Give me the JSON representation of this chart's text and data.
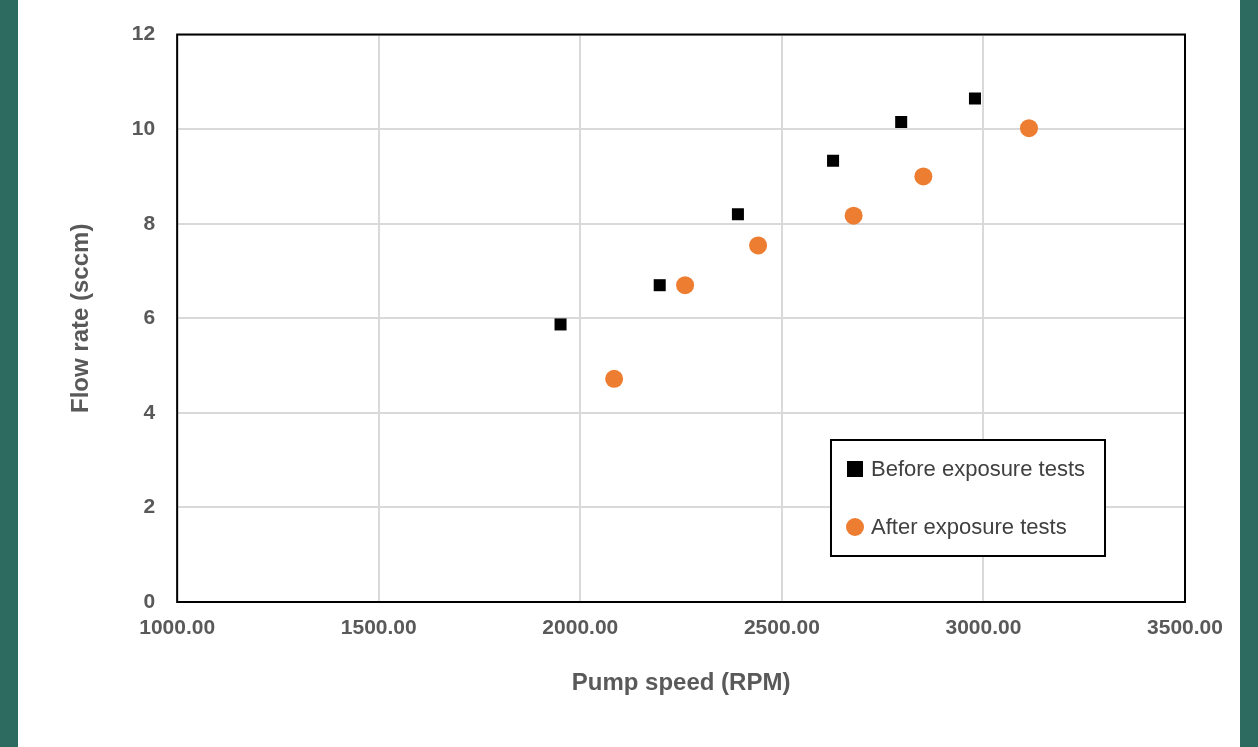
{
  "chart_data": {
    "type": "scatter",
    "xlabel": "Pump speed (RPM)",
    "ylabel": "Flow rate (sccm)",
    "xlim": [
      1000,
      3500
    ],
    "xticks": [
      {
        "value": 1000,
        "label": "1000.00"
      },
      {
        "value": 1500,
        "label": "1500.00"
      },
      {
        "value": 2000,
        "label": "2000.00"
      },
      {
        "value": 2500,
        "label": "2500.00"
      },
      {
        "value": 3000,
        "label": "3000.00"
      },
      {
        "value": 3500,
        "label": "3500.00"
      }
    ],
    "ylim": [
      0,
      12
    ],
    "yticks": [
      0,
      2,
      4,
      6,
      8,
      10,
      12
    ],
    "grid": true,
    "legend": "bottom right",
    "series": [
      {
        "name": "Before exposure tests",
        "color": "#000000",
        "marker": "square",
        "x": [
          1951,
          2197,
          2391,
          2627,
          2796,
          2979
        ],
        "values": [
          5.87,
          6.7,
          8.2,
          9.33,
          10.15,
          10.65
        ]
      },
      {
        "name": "After exposure tests",
        "color": "#ed7d31",
        "marker": "circle",
        "x": [
          2084,
          2260,
          2441,
          2678,
          2851,
          3113
        ],
        "values": [
          4.72,
          6.7,
          7.54,
          8.17,
          9.0,
          10.02
        ]
      }
    ]
  }
}
